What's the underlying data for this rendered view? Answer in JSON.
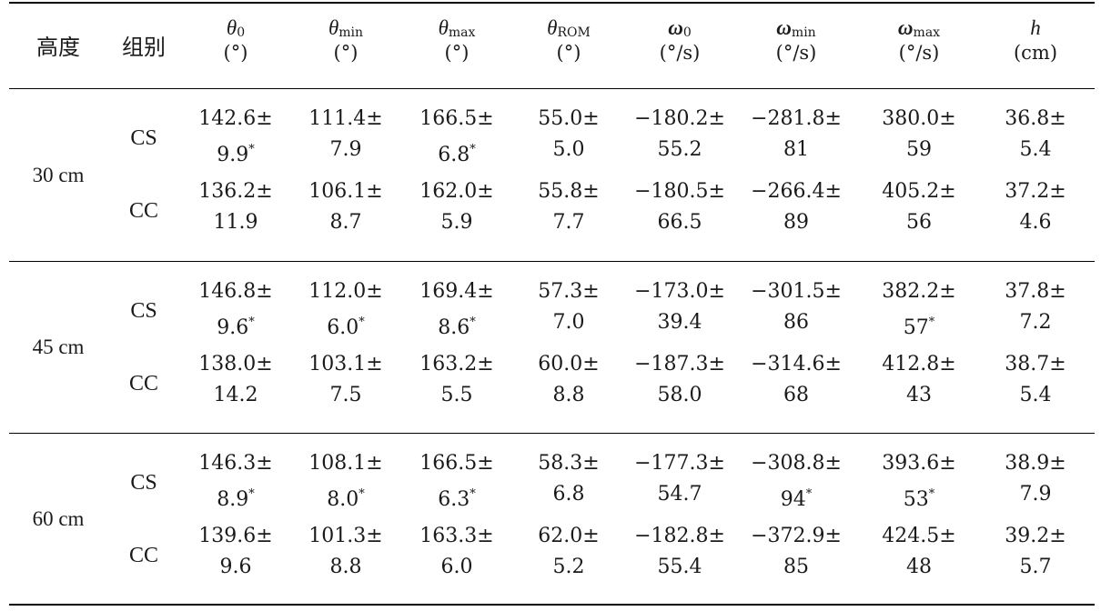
{
  "headers": [
    {
      "label": "高度"
    },
    {
      "label": "组别"
    },
    {
      "symbol": "θ",
      "sub": "0",
      "unit": "(°)"
    },
    {
      "symbol": "θ",
      "sub": "min",
      "unit": "(°)"
    },
    {
      "symbol": "θ",
      "sub": "max",
      "unit": "(°)"
    },
    {
      "symbol": "θ",
      "sub": "ROM",
      "unit": "(°)"
    },
    {
      "symbol": "ω",
      "sub": "0",
      "unit": "(°/s)"
    },
    {
      "symbol": "ω",
      "sub": "min",
      "unit": "(°/s)"
    },
    {
      "symbol": "ω",
      "sub": "max",
      "unit": "(°/s)"
    },
    {
      "symbol": "h",
      "sub": "",
      "unit": "(cm)"
    }
  ],
  "groups": [
    {
      "height": "30 cm",
      "rows": [
        {
          "group": "CS",
          "cells": [
            [
              "142.6±",
              "9.9",
              "*"
            ],
            [
              "111.4±",
              "7.9",
              ""
            ],
            [
              "166.5±",
              "6.8",
              "*"
            ],
            [
              "55.0±",
              "5.0",
              ""
            ],
            [
              "−180.2±",
              "55.2",
              ""
            ],
            [
              "−281.8±",
              "81",
              ""
            ],
            [
              "380.0±",
              "59",
              ""
            ],
            [
              "36.8±",
              "5.4",
              ""
            ]
          ]
        },
        {
          "group": "CC",
          "cells": [
            [
              "136.2±",
              "11.9",
              ""
            ],
            [
              "106.1±",
              "8.7",
              ""
            ],
            [
              "162.0±",
              "5.9",
              ""
            ],
            [
              "55.8±",
              "7.7",
              ""
            ],
            [
              "−180.5±",
              "66.5",
              ""
            ],
            [
              "−266.4±",
              "89",
              ""
            ],
            [
              "405.2±",
              "56",
              ""
            ],
            [
              "37.2±",
              "4.6",
              ""
            ]
          ]
        }
      ]
    },
    {
      "height": "45 cm",
      "rows": [
        {
          "group": "CS",
          "cells": [
            [
              "146.8±",
              "9.6",
              "*"
            ],
            [
              "112.0±",
              "6.0",
              "*"
            ],
            [
              "169.4±",
              "8.6",
              "*"
            ],
            [
              "57.3±",
              "7.0",
              ""
            ],
            [
              "−173.0±",
              "39.4",
              ""
            ],
            [
              "−301.5±",
              "86",
              ""
            ],
            [
              "382.2±",
              "57",
              "*"
            ],
            [
              "37.8±",
              "7.2",
              ""
            ]
          ]
        },
        {
          "group": "CC",
          "cells": [
            [
              "138.0±",
              "14.2",
              ""
            ],
            [
              "103.1±",
              "7.5",
              ""
            ],
            [
              "163.2±",
              "5.5",
              ""
            ],
            [
              "60.0±",
              "8.8",
              ""
            ],
            [
              "−187.3±",
              "58.0",
              ""
            ],
            [
              "−314.6±",
              "68",
              ""
            ],
            [
              "412.8±",
              "43",
              ""
            ],
            [
              "38.7±",
              "5.4",
              ""
            ]
          ]
        }
      ]
    },
    {
      "height": "60 cm",
      "rows": [
        {
          "group": "CS",
          "cells": [
            [
              "146.3±",
              "8.9",
              "*"
            ],
            [
              "108.1±",
              "8.0",
              "*"
            ],
            [
              "166.5±",
              "6.3",
              "*"
            ],
            [
              "58.3±",
              "6.8",
              ""
            ],
            [
              "−177.3±",
              "54.7",
              ""
            ],
            [
              "−308.8±",
              "94",
              "*"
            ],
            [
              "393.6±",
              "53",
              "*"
            ],
            [
              "38.9±",
              "7.9",
              ""
            ]
          ]
        },
        {
          "group": "CC",
          "cells": [
            [
              "139.6±",
              "9.6",
              ""
            ],
            [
              "101.3±",
              "8.8",
              ""
            ],
            [
              "163.3±",
              "6.0",
              ""
            ],
            [
              "62.0±",
              "5.2",
              ""
            ],
            [
              "−182.8±",
              "55.4",
              ""
            ],
            [
              "−372.9±",
              "85",
              ""
            ],
            [
              "424.5±",
              "48",
              ""
            ],
            [
              "39.2±",
              "5.7",
              ""
            ]
          ]
        }
      ]
    }
  ]
}
